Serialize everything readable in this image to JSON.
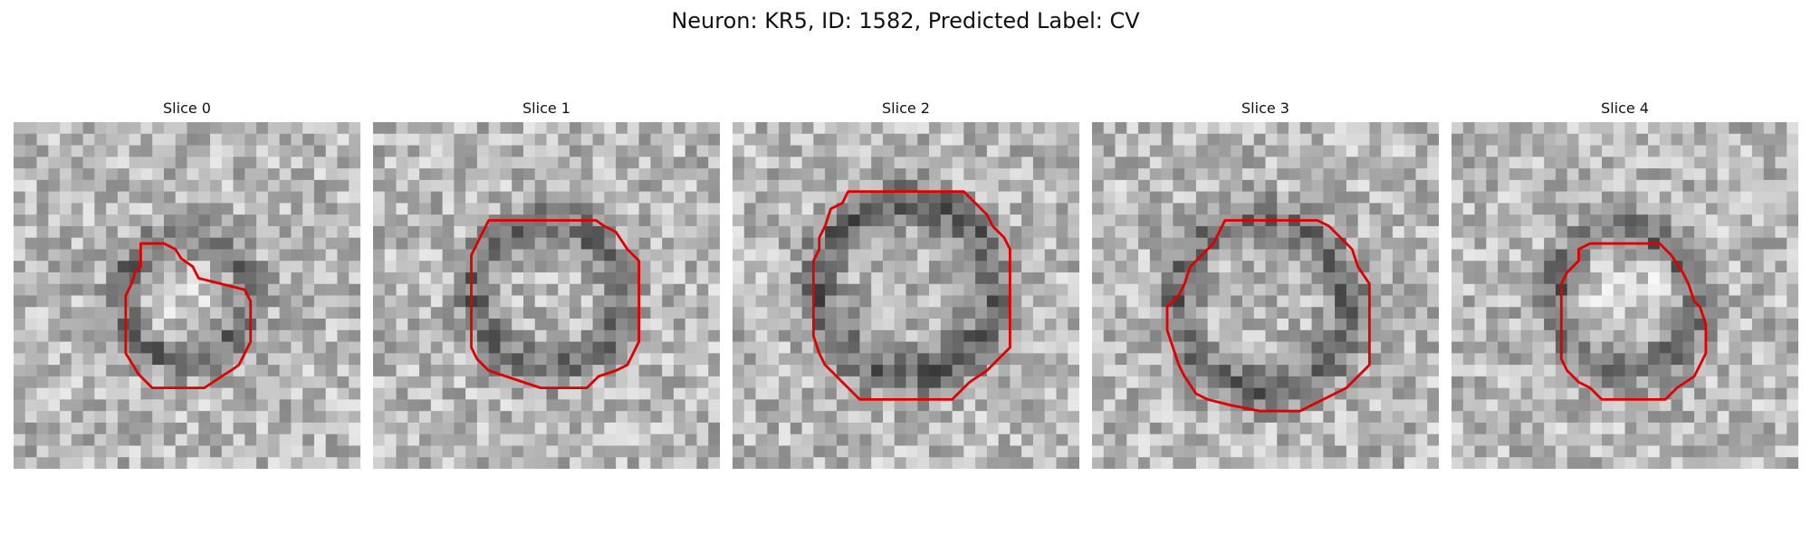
{
  "figure": {
    "title": "Neuron: KR5, ID: 1582, Predicted Label: CV"
  },
  "panels": [
    {
      "title": "Slice 0"
    },
    {
      "title": "Slice 1"
    },
    {
      "title": "Slice 2"
    },
    {
      "title": "Slice 3"
    },
    {
      "title": "Slice 4"
    }
  ],
  "colors": {
    "contour": "#e00000",
    "background": "#ffffff"
  }
}
